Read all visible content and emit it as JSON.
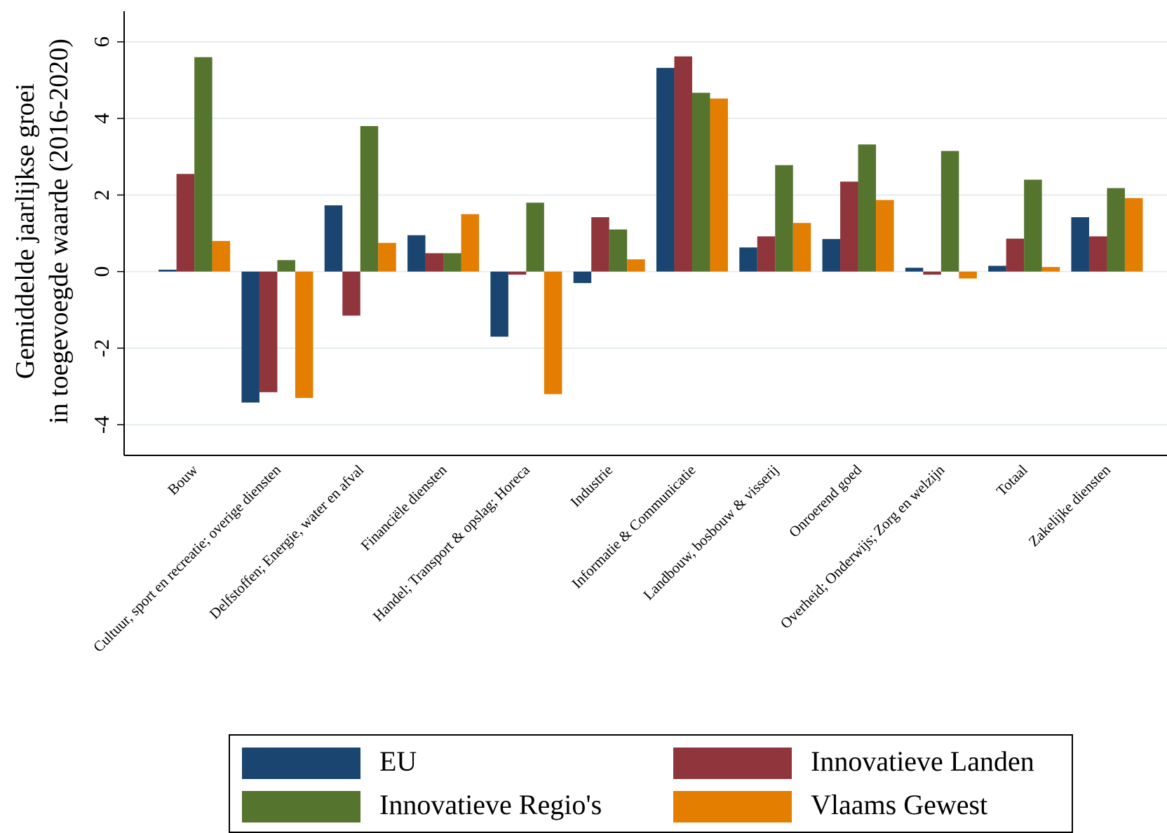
{
  "chart_data": {
    "type": "bar",
    "y_label": [
      "Gemiddelde jaarlijkse groei",
      "in toegevoegde waarde (2016-2020)"
    ],
    "categories": [
      "Bouw",
      "Cultuur, sport en recreatie; overige diensten",
      "Delfstoffen; Energie, water en afval",
      "Financiële diensten",
      "Handel; Transport & opslag; Horeca",
      "Industrie",
      "Informatie & Communicatie",
      "Landbouw, bosbouw & visserij",
      "Onroerend goed",
      "Overheid; Onderwijs; Zorg en welzijn",
      "Totaal",
      "Zakelijke diensten"
    ],
    "series": [
      {
        "name": "EU",
        "color": "#1a4570",
        "values": [
          0.05,
          -3.42,
          1.73,
          0.95,
          -1.7,
          -0.3,
          5.32,
          0.63,
          0.85,
          0.1,
          0.15,
          1.42
        ]
      },
      {
        "name": "Innovatieve Landen",
        "color": "#90353b",
        "values": [
          2.55,
          -3.15,
          -1.15,
          0.48,
          -0.08,
          1.42,
          5.62,
          0.92,
          2.35,
          -0.08,
          0.86,
          0.92
        ]
      },
      {
        "name": "Innovatieve Regio's",
        "color": "#55752f",
        "values": [
          5.6,
          0.3,
          3.8,
          0.48,
          1.8,
          1.1,
          4.67,
          2.78,
          3.32,
          3.15,
          2.4,
          2.18
        ]
      },
      {
        "name": "Vlaams Gewest",
        "color": "#e37e00",
        "values": [
          0.8,
          -3.3,
          0.75,
          1.5,
          -3.2,
          0.32,
          4.52,
          1.27,
          1.87,
          -0.18,
          0.12,
          1.92
        ]
      }
    ],
    "ylim": [
      -4.8,
      6.8
    ],
    "yticks": [
      -4,
      -2,
      0,
      2,
      4,
      6
    ],
    "grid": true,
    "legend": "bottom"
  }
}
